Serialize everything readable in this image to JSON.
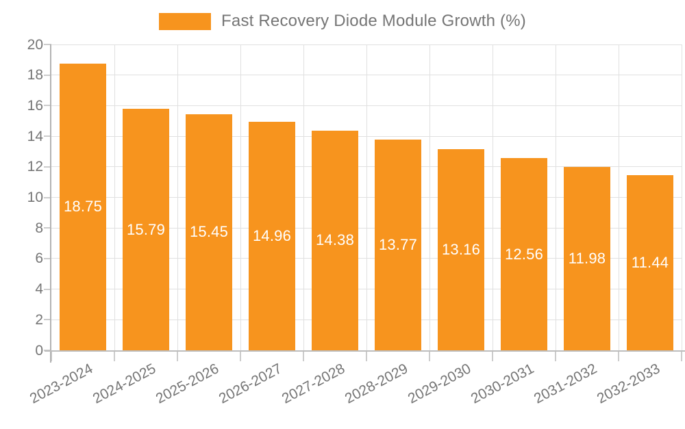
{
  "chart_data": {
    "type": "bar",
    "title": "",
    "legend": {
      "label": "Fast Recovery Diode Module Growth (%)",
      "position": "top-center"
    },
    "categories": [
      "2023-2024",
      "2024-2025",
      "2025-2026",
      "2026-2027",
      "2027-2028",
      "2028-2029",
      "2029-2030",
      "2030-2031",
      "2031-2032",
      "2032-2033"
    ],
    "values": [
      18.75,
      15.79,
      15.45,
      14.96,
      14.38,
      13.77,
      13.16,
      12.56,
      11.98,
      11.44
    ],
    "value_label_decimals": 2,
    "xlabel": "",
    "ylabel": "",
    "ylim": [
      0,
      20
    ],
    "yticks": [
      0,
      2,
      4,
      6,
      8,
      10,
      12,
      14,
      16,
      18,
      20
    ],
    "grid": true,
    "colors": {
      "bar": "#f7941e",
      "bar_value_text": "#ffffff",
      "axis_text": "#757575",
      "legend_text": "#757575",
      "gridline": "#e0e0e0",
      "axis_line": "#b3b3b3",
      "tick": "#cccccc",
      "background": "#ffffff"
    }
  }
}
